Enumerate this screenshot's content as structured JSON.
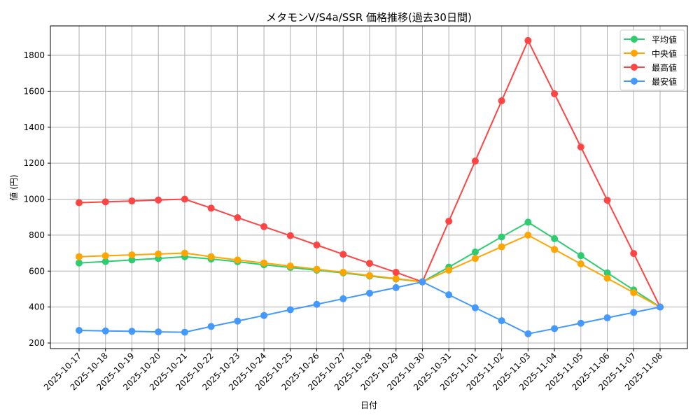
{
  "chart_data": {
    "type": "line",
    "title": "メタモンV/S4a/SSR 価格推移(過去30日間)",
    "xlabel": "日付",
    "ylabel": "値 (円)",
    "ylim": [
      170,
      1960
    ],
    "yticks": [
      200,
      400,
      600,
      800,
      1000,
      1200,
      1400,
      1600,
      1800
    ],
    "grid": true,
    "legend_position": "top-right",
    "x": [
      "2025-10-17",
      "2025-10-18",
      "2025-10-19",
      "2025-10-20",
      "2025-10-21",
      "2025-10-22",
      "2025-10-23",
      "2025-10-24",
      "2025-10-25",
      "2025-10-26",
      "2025-10-27",
      "2025-10-28",
      "2025-10-29",
      "2025-10-30",
      "2025-10-31",
      "2025-11-01",
      "2025-11-02",
      "2025-11-03",
      "2025-11-04",
      "2025-11-05",
      "2025-11-06",
      "2025-11-07",
      "2025-11-08"
    ],
    "series": [
      {
        "name": "平均値",
        "color": "#2ecc71",
        "values": [
          645,
          653,
          662,
          670,
          680,
          667,
          652,
          635,
          620,
          605,
          590,
          572,
          556,
          540,
          622,
          706,
          790,
          872,
          780,
          686,
          590,
          495,
          400
        ]
      },
      {
        "name": "中央値",
        "color": "#ffa500",
        "values": [
          680,
          685,
          690,
          695,
          700,
          680,
          662,
          645,
          628,
          610,
          593,
          575,
          558,
          540,
          605,
          670,
          735,
          800,
          720,
          640,
          560,
          480,
          400
        ]
      },
      {
        "name": "最高値",
        "color": "#ff4444",
        "values": [
          980,
          985,
          990,
          995,
          1000,
          950,
          897,
          847,
          797,
          745,
          693,
          643,
          593,
          540,
          877,
          1212,
          1547,
          1882,
          1586,
          1290,
          994,
          698,
          400
        ]
      },
      {
        "name": "最安値",
        "color": "#4499ff",
        "values": [
          270,
          267,
          265,
          262,
          260,
          292,
          322,
          353,
          385,
          415,
          446,
          477,
          508,
          540,
          468,
          396,
          324,
          251,
          280,
          310,
          340,
          370,
          400
        ]
      }
    ]
  }
}
